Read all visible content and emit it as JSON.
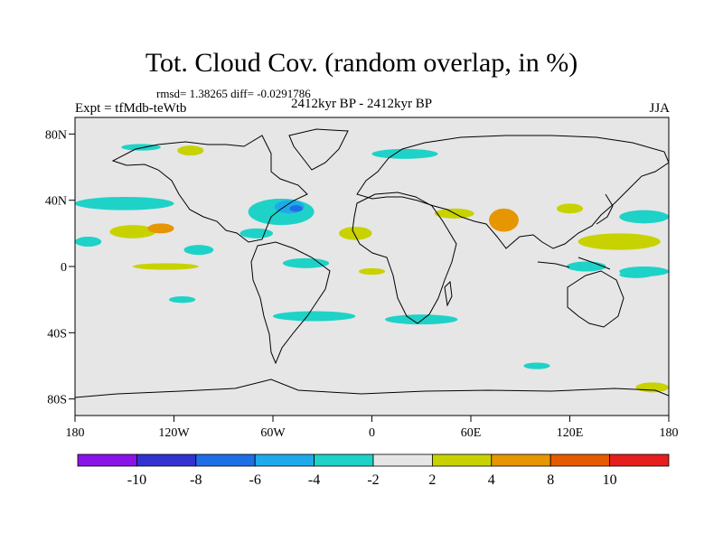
{
  "title": "Tot. Cloud Cov. (random overlap, in %)",
  "stats_line": "rmsd= 1.38265 diff= -0.0291786",
  "experiment": "Expt = tfMdb-teWtb",
  "period": "2412kyr BP - 2412kyr BP",
  "season": "JJA",
  "map": {
    "lon_range": [
      -180,
      180
    ],
    "lat_range": [
      -90,
      90
    ],
    "x_ticks": [
      {
        "lon": -180,
        "label": "180"
      },
      {
        "lon": -120,
        "label": "120W"
      },
      {
        "lon": -60,
        "label": "60W"
      },
      {
        "lon": 0,
        "label": "0"
      },
      {
        "lon": 60,
        "label": "60E"
      },
      {
        "lon": 120,
        "label": "120E"
      },
      {
        "lon": 180,
        "label": "180"
      }
    ],
    "y_ticks": [
      {
        "lat": 80,
        "label": "80N"
      },
      {
        "lat": 40,
        "label": "40N"
      },
      {
        "lat": 0,
        "label": "0"
      },
      {
        "lat": -40,
        "label": "40S"
      },
      {
        "lat": -80,
        "label": "80S"
      }
    ],
    "background_color": "#e6e6e6"
  },
  "colorbar": {
    "colors": [
      "#8a14e8",
      "#3232d2",
      "#1e6ee6",
      "#1eaaea",
      "#1ed2c8",
      "#e6e6e6",
      "#c8d200",
      "#e69600",
      "#e65a00",
      "#e61e1e"
    ],
    "tick_labels": [
      "-10",
      "-8",
      "-6",
      "-4",
      "-2",
      "2",
      "4",
      "8",
      "10"
    ]
  },
  "anomaly_patches": [
    {
      "lon": -145,
      "lat": 21,
      "rx": 14,
      "ry": 4,
      "level": "+2"
    },
    {
      "lon": -128,
      "lat": 23,
      "rx": 8,
      "ry": 3,
      "level": "+4"
    },
    {
      "lon": -172,
      "lat": 15,
      "rx": 8,
      "ry": 3,
      "level": "-2"
    },
    {
      "lon": -150,
      "lat": 38,
      "rx": 30,
      "ry": 4,
      "level": "-2"
    },
    {
      "lon": -105,
      "lat": 10,
      "rx": 9,
      "ry": 3,
      "level": "-2"
    },
    {
      "lon": -125,
      "lat": 0,
      "rx": 20,
      "ry": 2,
      "level": "+2"
    },
    {
      "lon": -55,
      "lat": 33,
      "rx": 20,
      "ry": 8,
      "level": "-2"
    },
    {
      "lon": -50,
      "lat": 36,
      "rx": 9,
      "ry": 4,
      "level": "-4"
    },
    {
      "lon": -46,
      "lat": 35,
      "rx": 4,
      "ry": 2,
      "level": "-6"
    },
    {
      "lon": -70,
      "lat": 20,
      "rx": 10,
      "ry": 3,
      "level": "-2"
    },
    {
      "lon": -40,
      "lat": 2,
      "rx": 14,
      "ry": 3,
      "level": "-2"
    },
    {
      "lon": -10,
      "lat": 20,
      "rx": 10,
      "ry": 4,
      "level": "+2"
    },
    {
      "lon": 0,
      "lat": -3,
      "rx": 8,
      "ry": 2,
      "level": "+2"
    },
    {
      "lon": 80,
      "lat": 28,
      "rx": 9,
      "ry": 7,
      "level": "+4"
    },
    {
      "lon": 50,
      "lat": 32,
      "rx": 12,
      "ry": 3,
      "level": "+2"
    },
    {
      "lon": 150,
      "lat": 15,
      "rx": 25,
      "ry": 5,
      "level": "+2"
    },
    {
      "lon": 165,
      "lat": 30,
      "rx": 15,
      "ry": 4,
      "level": "-2"
    },
    {
      "lon": 130,
      "lat": 0,
      "rx": 12,
      "ry": 3,
      "level": "-2"
    },
    {
      "lon": 165,
      "lat": -3,
      "rx": 15,
      "ry": 3,
      "level": "-2"
    },
    {
      "lon": 120,
      "lat": 35,
      "rx": 8,
      "ry": 3,
      "level": "+2"
    },
    {
      "lon": -35,
      "lat": -30,
      "rx": 25,
      "ry": 3,
      "level": "-2"
    },
    {
      "lon": 30,
      "lat": -32,
      "rx": 22,
      "ry": 3,
      "level": "-2"
    },
    {
      "lon": -115,
      "lat": -20,
      "rx": 8,
      "ry": 2,
      "level": "-2"
    },
    {
      "lon": 160,
      "lat": -5,
      "rx": 10,
      "ry": 2,
      "level": "-2"
    },
    {
      "lon": 100,
      "lat": -60,
      "rx": 8,
      "ry": 2,
      "level": "-2"
    },
    {
      "lon": 170,
      "lat": -73,
      "rx": 10,
      "ry": 3,
      "level": "+2"
    },
    {
      "lon": -140,
      "lat": 72,
      "rx": 12,
      "ry": 2,
      "level": "-2"
    },
    {
      "lon": 20,
      "lat": 68,
      "rx": 20,
      "ry": 3,
      "level": "-2"
    },
    {
      "lon": -110,
      "lat": 70,
      "rx": 8,
      "ry": 3,
      "level": "+2"
    }
  ]
}
